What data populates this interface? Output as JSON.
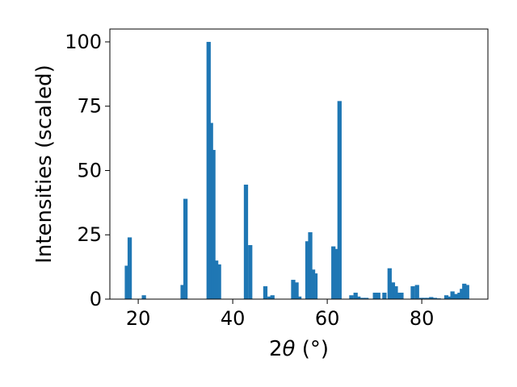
{
  "chart_data": {
    "type": "bar",
    "xlabel_parts": {
      "pre": "2",
      "theta": "θ",
      "post": " (°)"
    },
    "ylabel": "Intensities (scaled)",
    "xlim": [
      14,
      94
    ],
    "ylim": [
      0,
      105
    ],
    "x_ticks": [
      20,
      40,
      60,
      80
    ],
    "y_ticks": [
      0,
      25,
      50,
      75,
      100
    ],
    "bar_width": 0.9,
    "color": "#1f77b4",
    "grid": false,
    "legend": false,
    "x": [
      17.6,
      18.2,
      21.2,
      29.4,
      30.0,
      34.9,
      35.4,
      35.9,
      36.5,
      37.1,
      42.8,
      43.7,
      46.9,
      47.8,
      48.4,
      52.8,
      53.5,
      54.1,
      55.8,
      56.4,
      57.0,
      57.5,
      61.3,
      61.9,
      62.6,
      65.1,
      66.0,
      66.6,
      67.5,
      68.3,
      70.1,
      70.8,
      72.1,
      73.2,
      73.9,
      74.5,
      75.1,
      75.7,
      78.1,
      79.0,
      79.9,
      80.6,
      81.3,
      82.0,
      82.8,
      83.6,
      85.2,
      85.9,
      86.5,
      87.3,
      88.0,
      88.5,
      89.0,
      89.6
    ],
    "values": [
      13,
      24,
      1.5,
      5.5,
      39,
      100,
      68.5,
      58,
      15,
      13.5,
      44.5,
      21,
      5,
      1,
      1.5,
      7.5,
      6.5,
      1,
      22.5,
      26,
      11.5,
      10,
      20.5,
      19.5,
      77,
      1.5,
      2.5,
      1,
      0.5,
      0.5,
      2.5,
      2.5,
      2.5,
      12,
      6.5,
      5,
      2.5,
      2.5,
      5,
      5.5,
      0.5,
      0.5,
      0.5,
      0.8,
      0.5,
      0.3,
      1.5,
      1.0,
      3.0,
      2.0,
      2.5,
      4.0,
      6.0,
      5.5
    ]
  }
}
